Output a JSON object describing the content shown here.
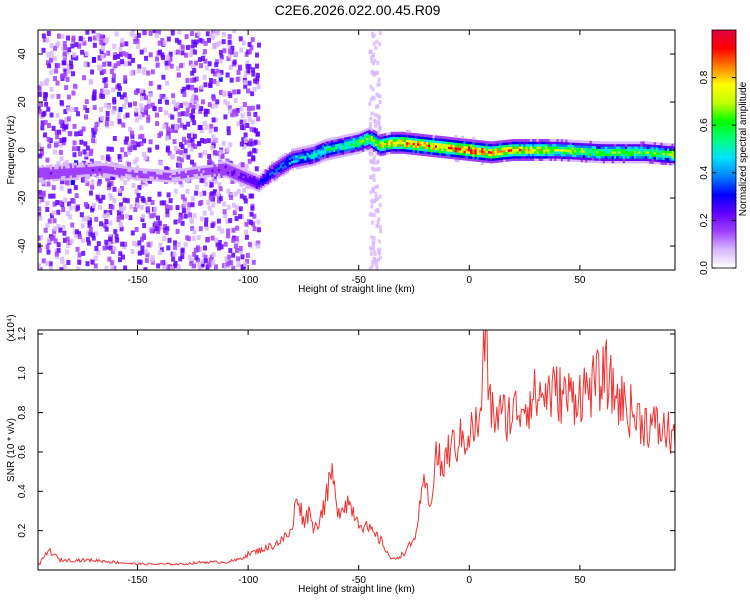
{
  "chart_data": [
    {
      "type": "heatmap",
      "title": "C2E6.2026.022.00.45.R09",
      "xlabel": "Height of straight line (km)",
      "ylabel": "Frequency (Hz)",
      "xlim": [
        -195,
        93
      ],
      "ylim": [
        -50,
        50
      ],
      "xticks": [
        -150,
        -100,
        -50,
        0,
        50
      ],
      "yticks": [
        -40,
        -20,
        0,
        20,
        40
      ],
      "colorbar": {
        "label": "Normalized spectral amplitude",
        "range": [
          0,
          1
        ],
        "ticks": [
          "0.0",
          "0.2",
          "0.4",
          "0.6",
          "0.8"
        ],
        "tick_values": [
          0.0,
          0.2,
          0.4,
          0.6,
          0.8
        ],
        "colors": [
          "#ffffff",
          "#d8b8ff",
          "#a040ff",
          "#6000ff",
          "#0000ff",
          "#0080ff",
          "#00e0ff",
          "#00ff80",
          "#00ff00",
          "#c0ff00",
          "#ffff00",
          "#ff8000",
          "#ff0000",
          "#e00040"
        ]
      },
      "ridge": {
        "description": "dominant frequency track",
        "x": [
          -195,
          -180,
          -165,
          -150,
          -135,
          -120,
          -110,
          -100,
          -95,
          -90,
          -85,
          -80,
          -75,
          -70,
          -65,
          -60,
          -55,
          -50,
          -45,
          -40,
          -35,
          -30,
          -20,
          -10,
          0,
          10,
          20,
          40,
          60,
          80,
          93
        ],
        "y": [
          -10,
          -9,
          -8,
          -10,
          -11,
          -9,
          -8,
          -12,
          -14,
          -10,
          -7,
          -4,
          -3,
          -2,
          0,
          1,
          2,
          3,
          5,
          2,
          3,
          3,
          2,
          1,
          0,
          -1,
          0,
          0,
          -1,
          -1,
          -2
        ],
        "amplitude": [
          0.2,
          0.18,
          0.18,
          0.15,
          0.15,
          0.15,
          0.22,
          0.25,
          0.3,
          0.35,
          0.4,
          0.45,
          0.5,
          0.5,
          0.55,
          0.55,
          0.6,
          0.65,
          0.7,
          0.8,
          0.85,
          0.9,
          0.9,
          0.9,
          0.95,
          0.9,
          0.85,
          0.7,
          0.65,
          0.65,
          0.7
        ]
      }
    },
    {
      "type": "line",
      "title": "",
      "xlabel": "Height of straight line (km)",
      "ylabel": "SNR (10 * v/v)",
      "y_multiplier": "(x10⁴)",
      "xlim": [
        -195,
        93
      ],
      "ylim": [
        0,
        1.22
      ],
      "xticks": [
        -150,
        -100,
        -50,
        0,
        50
      ],
      "yticks": [
        "0.2",
        "0.4",
        "0.6",
        "0.8",
        "1.0",
        "1.2"
      ],
      "ytick_values": [
        0.2,
        0.4,
        0.6,
        0.8,
        1.0,
        1.2
      ],
      "color": "#ee3333",
      "series": [
        {
          "name": "SNR",
          "x": [
            -195,
            -190,
            -185,
            -180,
            -170,
            -160,
            -150,
            -140,
            -130,
            -120,
            -110,
            -105,
            -100,
            -95,
            -90,
            -85,
            -80,
            -78,
            -75,
            -72,
            -70,
            -65,
            -62,
            -60,
            -55,
            -50,
            -45,
            -40,
            -35,
            -30,
            -25,
            -20,
            -18,
            -15,
            -12,
            -10,
            -5,
            0,
            5,
            7,
            10,
            15,
            20,
            25,
            30,
            35,
            40,
            45,
            50,
            55,
            60,
            62,
            65,
            70,
            75,
            80,
            85,
            90,
            93
          ],
          "y": [
            0.02,
            0.1,
            0.05,
            0.05,
            0.05,
            0.04,
            0.03,
            0.03,
            0.03,
            0.04,
            0.04,
            0.05,
            0.08,
            0.1,
            0.12,
            0.15,
            0.2,
            0.4,
            0.25,
            0.3,
            0.2,
            0.35,
            0.5,
            0.3,
            0.35,
            0.25,
            0.2,
            0.15,
            0.05,
            0.08,
            0.15,
            0.45,
            0.3,
            0.6,
            0.5,
            0.6,
            0.65,
            0.7,
            0.75,
            1.2,
            0.8,
            0.78,
            0.8,
            0.85,
            0.88,
            0.9,
            0.9,
            0.88,
            0.9,
            0.93,
            0.97,
            1.0,
            0.9,
            0.85,
            0.78,
            0.75,
            0.72,
            0.7,
            0.68
          ]
        }
      ]
    }
  ]
}
